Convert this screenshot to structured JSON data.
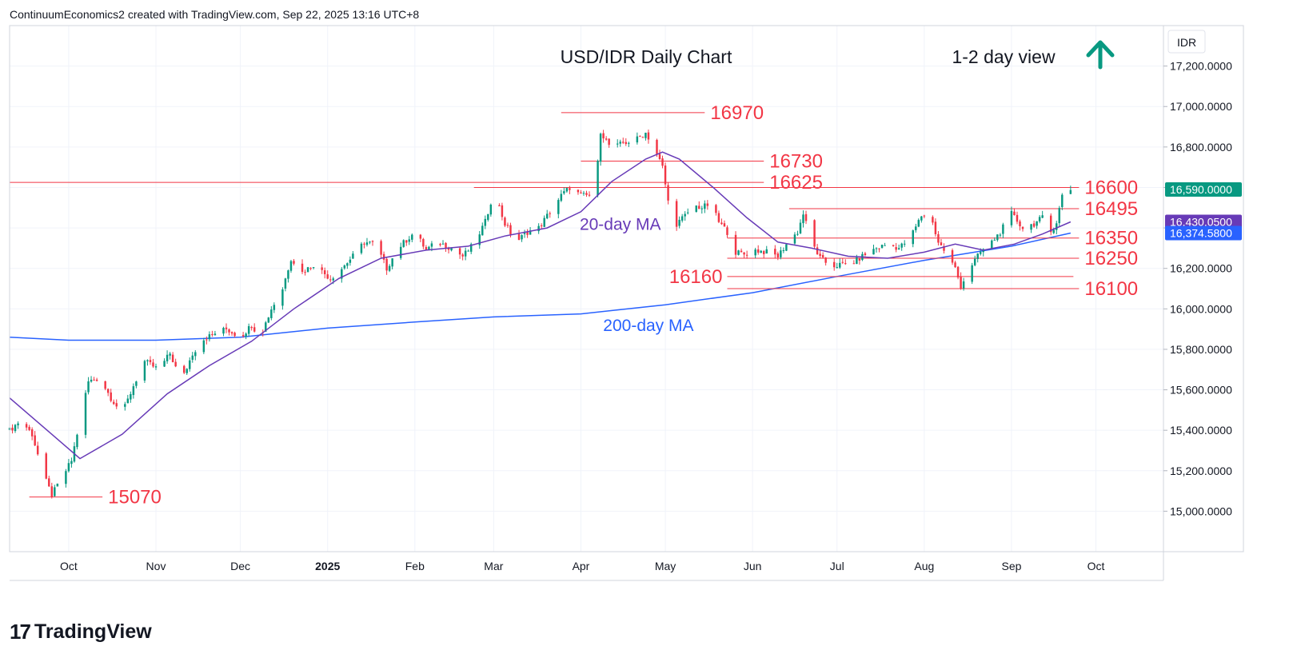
{
  "header": {
    "text": "ContinuumEconomics2 created with TradingView.com, Sep 22, 2025 13:16 UTC+8"
  },
  "footer": {
    "brand": "TradingView"
  },
  "chart_data": {
    "type": "candlestick",
    "title": "USD/IDR Daily Chart",
    "view_label": "1-2 day view",
    "view_direction": "up",
    "arrow_color": "#089981",
    "currency_label": "IDR",
    "ylim": [
      14800,
      17400
    ],
    "y_ticks": [
      15000,
      15200,
      15400,
      15600,
      15800,
      16000,
      16200,
      16400,
      16600,
      16800,
      17000,
      17200
    ],
    "y_tick_labels": [
      "15,000.0000",
      "15,200.0000",
      "15,400.0000",
      "15,600.0000",
      "15,800.0000",
      "16,000.0000",
      "16,200.0000",
      "16,400.0000",
      "16,600.0000",
      "16,800.0000",
      "17,000.0000",
      "17,200.0000"
    ],
    "x_start": "2024-09-10",
    "x_end": "2025-10-25",
    "x_ticks": [
      {
        "date": "2024-10-01",
        "label": "Oct"
      },
      {
        "date": "2024-11-01",
        "label": "Nov"
      },
      {
        "date": "2024-12-01",
        "label": "Dec"
      },
      {
        "date": "2025-01-01",
        "label": "2025"
      },
      {
        "date": "2025-02-01",
        "label": "Feb"
      },
      {
        "date": "2025-03-01",
        "label": "Mar"
      },
      {
        "date": "2025-04-01",
        "label": "Apr"
      },
      {
        "date": "2025-05-01",
        "label": "May"
      },
      {
        "date": "2025-06-01",
        "label": "Jun"
      },
      {
        "date": "2025-07-01",
        "label": "Jul"
      },
      {
        "date": "2025-08-01",
        "label": "Aug"
      },
      {
        "date": "2025-09-01",
        "label": "Sep"
      },
      {
        "date": "2025-10-01",
        "label": "Oct"
      }
    ],
    "colors": {
      "up": "#089981",
      "down": "#f23645",
      "level": "#f23645",
      "ma20": "#673ab7",
      "ma200": "#2962ff"
    },
    "price_path": [
      [
        "2024-09-10",
        15400
      ],
      [
        "2024-09-14",
        15450
      ],
      [
        "2024-09-18",
        15380
      ],
      [
        "2024-09-22",
        15180
      ],
      [
        "2024-09-25",
        15080
      ],
      [
        "2024-09-28",
        15150
      ],
      [
        "2024-10-02",
        15250
      ],
      [
        "2024-10-05",
        15450
      ],
      [
        "2024-10-08",
        15640
      ],
      [
        "2024-10-12",
        15660
      ],
      [
        "2024-10-16",
        15560
      ],
      [
        "2024-10-20",
        15480
      ],
      [
        "2024-10-24",
        15620
      ],
      [
        "2024-10-28",
        15740
      ],
      [
        "2024-11-02",
        15700
      ],
      [
        "2024-11-06",
        15780
      ],
      [
        "2024-11-10",
        15640
      ],
      [
        "2024-11-14",
        15780
      ],
      [
        "2024-11-18",
        15850
      ],
      [
        "2024-11-22",
        15880
      ],
      [
        "2024-11-26",
        15900
      ],
      [
        "2024-12-01",
        15860
      ],
      [
        "2024-12-05",
        15920
      ],
      [
        "2024-12-08",
        15860
      ],
      [
        "2024-12-12",
        16000
      ],
      [
        "2024-12-16",
        16100
      ],
      [
        "2024-12-19",
        16250
      ],
      [
        "2024-12-23",
        16180
      ],
      [
        "2024-12-27",
        16220
      ],
      [
        "2025-01-02",
        16150
      ],
      [
        "2025-01-06",
        16200
      ],
      [
        "2025-01-10",
        16260
      ],
      [
        "2025-01-14",
        16330
      ],
      [
        "2025-01-18",
        16320
      ],
      [
        "2025-01-22",
        16200
      ],
      [
        "2025-01-26",
        16300
      ],
      [
        "2025-02-01",
        16380
      ],
      [
        "2025-02-05",
        16290
      ],
      [
        "2025-02-09",
        16330
      ],
      [
        "2025-02-14",
        16300
      ],
      [
        "2025-02-18",
        16260
      ],
      [
        "2025-02-22",
        16320
      ],
      [
        "2025-02-26",
        16430
      ],
      [
        "2025-03-01",
        16580
      ],
      [
        "2025-03-05",
        16420
      ],
      [
        "2025-03-09",
        16330
      ],
      [
        "2025-03-13",
        16380
      ],
      [
        "2025-03-17",
        16400
      ],
      [
        "2025-03-21",
        16480
      ],
      [
        "2025-03-25",
        16560
      ],
      [
        "2025-03-28",
        16600
      ],
      [
        "2025-04-01",
        16560
      ],
      [
        "2025-04-06",
        16560
      ],
      [
        "2025-04-08",
        16880
      ],
      [
        "2025-04-10",
        16830
      ],
      [
        "2025-04-12",
        16790
      ],
      [
        "2025-04-16",
        16820
      ],
      [
        "2025-04-20",
        16830
      ],
      [
        "2025-04-24",
        16870
      ],
      [
        "2025-04-27",
        16800
      ],
      [
        "2025-04-30",
        16700
      ],
      [
        "2025-05-02",
        16530
      ],
      [
        "2025-05-05",
        16420
      ],
      [
        "2025-05-08",
        16460
      ],
      [
        "2025-05-11",
        16510
      ],
      [
        "2025-05-14",
        16500
      ],
      [
        "2025-05-17",
        16520
      ],
      [
        "2025-05-20",
        16430
      ],
      [
        "2025-05-23",
        16380
      ],
      [
        "2025-05-26",
        16280
      ],
      [
        "2025-05-29",
        16270
      ],
      [
        "2025-06-02",
        16290
      ],
      [
        "2025-06-06",
        16280
      ],
      [
        "2025-06-10",
        16260
      ],
      [
        "2025-06-13",
        16320
      ],
      [
        "2025-06-17",
        16380
      ],
      [
        "2025-06-19",
        16470
      ],
      [
        "2025-06-22",
        16330
      ],
      [
        "2025-06-25",
        16250
      ],
      [
        "2025-06-29",
        16210
      ],
      [
        "2025-07-03",
        16220
      ],
      [
        "2025-07-07",
        16230
      ],
      [
        "2025-07-11",
        16270
      ],
      [
        "2025-07-15",
        16300
      ],
      [
        "2025-07-19",
        16320
      ],
      [
        "2025-07-23",
        16300
      ],
      [
        "2025-07-27",
        16350
      ],
      [
        "2025-07-31",
        16460
      ],
      [
        "2025-08-03",
        16470
      ],
      [
        "2025-08-06",
        16330
      ],
      [
        "2025-08-09",
        16270
      ],
      [
        "2025-08-12",
        16200
      ],
      [
        "2025-08-14",
        16110
      ],
      [
        "2025-08-17",
        16200
      ],
      [
        "2025-08-21",
        16280
      ],
      [
        "2025-08-25",
        16330
      ],
      [
        "2025-08-28",
        16380
      ],
      [
        "2025-09-01",
        16470
      ],
      [
        "2025-09-05",
        16400
      ],
      [
        "2025-09-09",
        16420
      ],
      [
        "2025-09-12",
        16450
      ],
      [
        "2025-09-15",
        16380
      ],
      [
        "2025-09-17",
        16430
      ],
      [
        "2025-09-19",
        16560
      ],
      [
        "2025-09-22",
        16590
      ]
    ],
    "ma20_path": [
      [
        "2024-09-10",
        15560
      ],
      [
        "2024-09-25",
        15380
      ],
      [
        "2024-10-05",
        15260
      ],
      [
        "2024-10-20",
        15380
      ],
      [
        "2024-11-05",
        15580
      ],
      [
        "2024-11-20",
        15720
      ],
      [
        "2024-12-05",
        15840
      ],
      [
        "2024-12-20",
        16000
      ],
      [
        "2025-01-05",
        16150
      ],
      [
        "2025-01-20",
        16250
      ],
      [
        "2025-02-05",
        16290
      ],
      [
        "2025-02-20",
        16310
      ],
      [
        "2025-03-05",
        16360
      ],
      [
        "2025-03-20",
        16400
      ],
      [
        "2025-04-01",
        16480
      ],
      [
        "2025-04-12",
        16630
      ],
      [
        "2025-04-24",
        16740
      ],
      [
        "2025-04-30",
        16775
      ],
      [
        "2025-05-06",
        16740
      ],
      [
        "2025-05-18",
        16600
      ],
      [
        "2025-05-30",
        16450
      ],
      [
        "2025-06-10",
        16330
      ],
      [
        "2025-06-22",
        16300
      ],
      [
        "2025-07-05",
        16260
      ],
      [
        "2025-07-19",
        16250
      ],
      [
        "2025-08-01",
        16280
      ],
      [
        "2025-08-12",
        16320
      ],
      [
        "2025-08-22",
        16290
      ],
      [
        "2025-09-02",
        16320
      ],
      [
        "2025-09-12",
        16370
      ],
      [
        "2025-09-22",
        16430
      ]
    ],
    "ma200_path": [
      [
        "2024-09-10",
        15860
      ],
      [
        "2024-10-01",
        15845
      ],
      [
        "2024-11-01",
        15845
      ],
      [
        "2024-12-01",
        15860
      ],
      [
        "2025-01-01",
        15905
      ],
      [
        "2025-02-01",
        15935
      ],
      [
        "2025-03-01",
        15960
      ],
      [
        "2025-04-01",
        15975
      ],
      [
        "2025-05-01",
        16020
      ],
      [
        "2025-06-01",
        16080
      ],
      [
        "2025-07-01",
        16160
      ],
      [
        "2025-08-01",
        16240
      ],
      [
        "2025-09-01",
        16310
      ],
      [
        "2025-09-22",
        16374.58
      ]
    ],
    "levels": [
      {
        "value": 16970,
        "label": "16970",
        "from": "2025-03-25",
        "to": "2025-05-15",
        "label_pos": "after-line"
      },
      {
        "value": 16730,
        "label": "16730",
        "from": "2025-04-01",
        "to": "2025-06-05",
        "label_pos": "after-line"
      },
      {
        "value": 16625,
        "label": "16625",
        "from": "2024-09-10",
        "to": "2025-06-05",
        "label_pos": "after-line"
      },
      {
        "value": 16600,
        "label": "16600",
        "from": "2025-02-22",
        "to": "2025-09-25",
        "label_pos": "after-line"
      },
      {
        "value": 16495,
        "label": "16495",
        "from": "2025-06-14",
        "to": "2025-09-25",
        "label_pos": "after-line"
      },
      {
        "value": 16350,
        "label": "16350",
        "from": "2025-05-23",
        "to": "2025-09-25",
        "label_pos": "after-line"
      },
      {
        "value": 16250,
        "label": "16250",
        "from": "2025-05-23",
        "to": "2025-09-25",
        "label_pos": "after-line"
      },
      {
        "value": 16160,
        "label": "16160",
        "from": "2025-05-23",
        "to": "2025-09-23",
        "label_pos": "before-line"
      },
      {
        "value": 16100,
        "label": "16100",
        "from": "2025-05-23",
        "to": "2025-09-25",
        "label_pos": "after-line"
      },
      {
        "value": 15070,
        "label": "15070",
        "from": "2024-09-17",
        "to": "2024-10-13",
        "label_pos": "after-line"
      }
    ],
    "annotations": [
      {
        "text": "20-day MA",
        "x": "2025-04-15",
        "y": 16390,
        "color": "#673ab7"
      },
      {
        "text": "200-day MA",
        "x": "2025-04-25",
        "y": 15890,
        "color": "#2962ff"
      }
    ],
    "price_tags": [
      {
        "value": 16590,
        "label": "16,590.0000",
        "bg": "#089981"
      },
      {
        "value": 16430.05,
        "label": "16,430.0500",
        "bg": "#673ab7"
      },
      {
        "value": 16374.58,
        "label": "16,374.5800",
        "bg": "#2962ff"
      }
    ]
  }
}
